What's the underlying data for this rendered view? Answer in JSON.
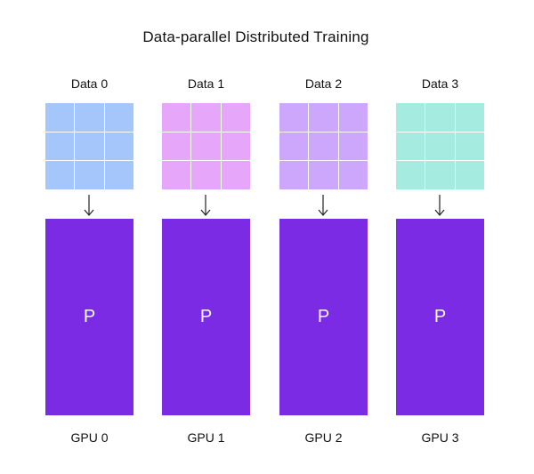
{
  "title": "Data-parallel Distributed Training",
  "colors": {
    "gpu_fill": "#7a2be3",
    "arrow": "#222222",
    "text": "#111111"
  },
  "columns": [
    {
      "data_label": "Data 0",
      "data_color": "#a5c6fb",
      "param_label": "P",
      "gpu_label": "GPU 0"
    },
    {
      "data_label": "Data 1",
      "data_color": "#e6a7fa",
      "param_label": "P",
      "gpu_label": "GPU 1"
    },
    {
      "data_label": "Data 2",
      "data_color": "#cda7fb",
      "param_label": "P",
      "gpu_label": "GPU 2"
    },
    {
      "data_label": "Data 3",
      "data_color": "#a6ebe0",
      "param_label": "P",
      "gpu_label": "GPU 3"
    }
  ],
  "icons": {
    "arrow": "arrow-down-icon"
  }
}
